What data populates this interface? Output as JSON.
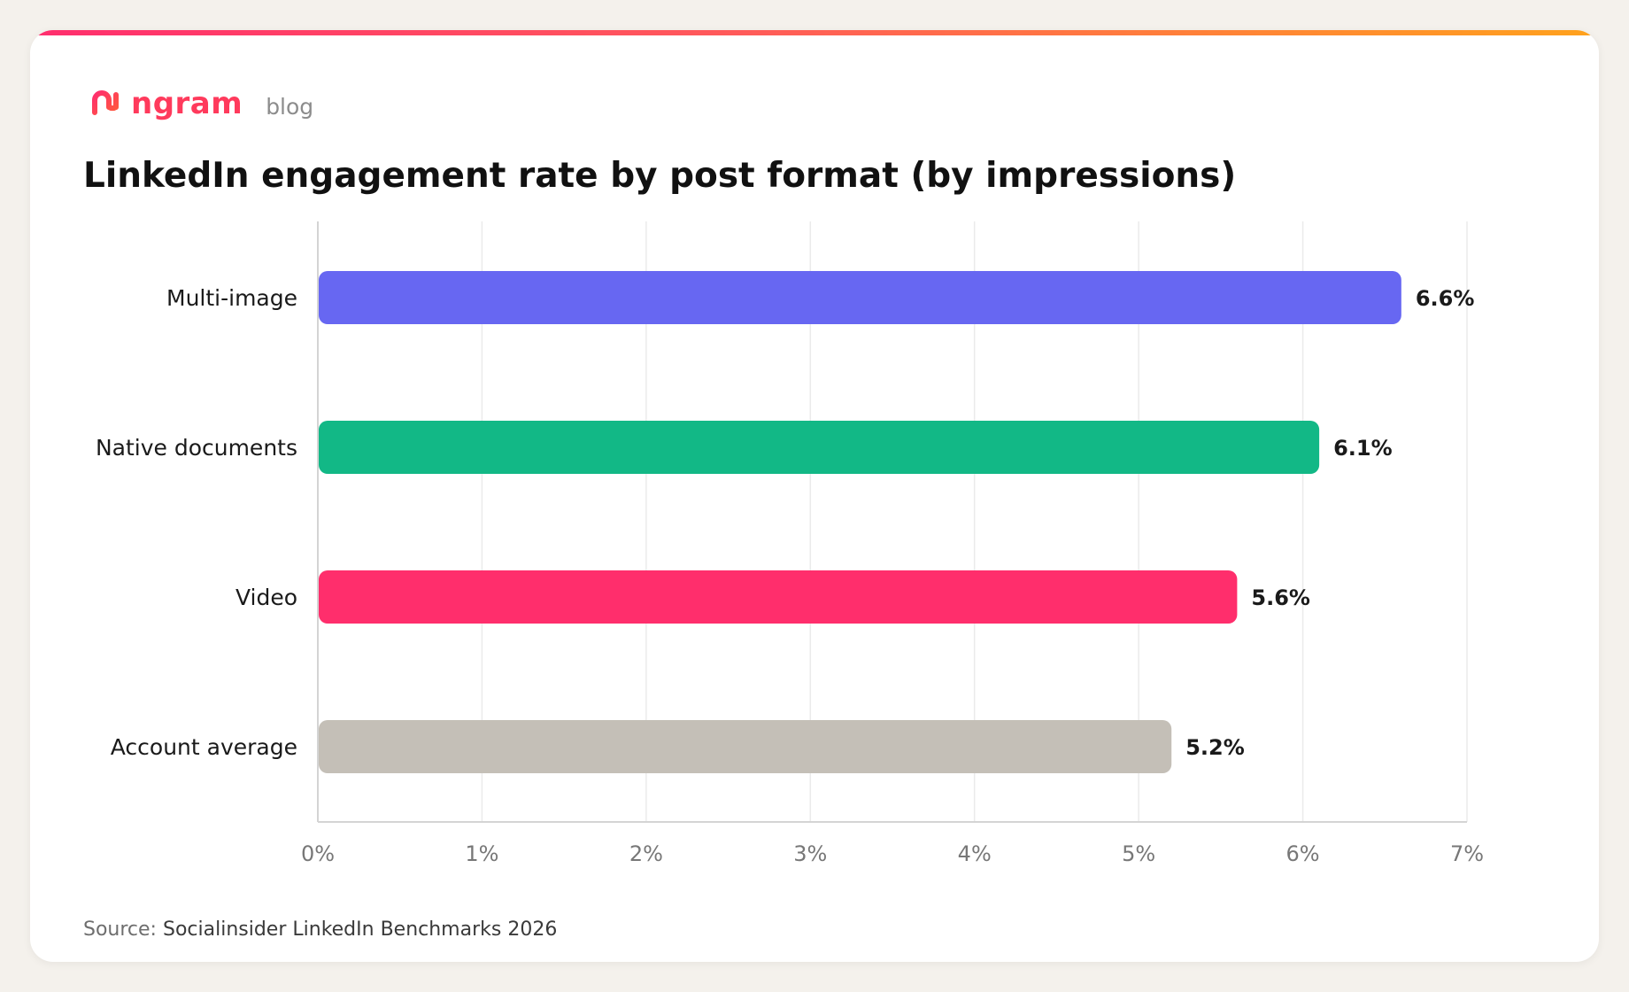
{
  "brand": {
    "logo_name": "ngram",
    "section": "blog",
    "accent_color": "#ff3a5c"
  },
  "header": {
    "title": "LinkedIn engagement rate by post format (by impressions)"
  },
  "footer": {
    "source_label": "Source:",
    "source_name": "Socialinsider LinkedIn Benchmarks 2026"
  },
  "chart_data": {
    "type": "bar",
    "orientation": "horizontal",
    "categories": [
      "Multi-image",
      "Native documents",
      "Video",
      "Account average"
    ],
    "values": [
      6.6,
      6.1,
      5.6,
      5.2
    ],
    "value_labels": [
      "6.6%",
      "6.1%",
      "5.6%",
      "5.2%"
    ],
    "colors": [
      "#6767f2",
      "#12b886",
      "#ff2e6c",
      "#c4bfb7"
    ],
    "xlim": [
      0,
      7
    ],
    "x_ticks": [
      0,
      1,
      2,
      3,
      4,
      5,
      6,
      7
    ],
    "x_tick_labels": [
      "0%",
      "1%",
      "2%",
      "3%",
      "4%",
      "5%",
      "6%",
      "7%"
    ],
    "grid": true,
    "xlabel": "",
    "ylabel": ""
  }
}
